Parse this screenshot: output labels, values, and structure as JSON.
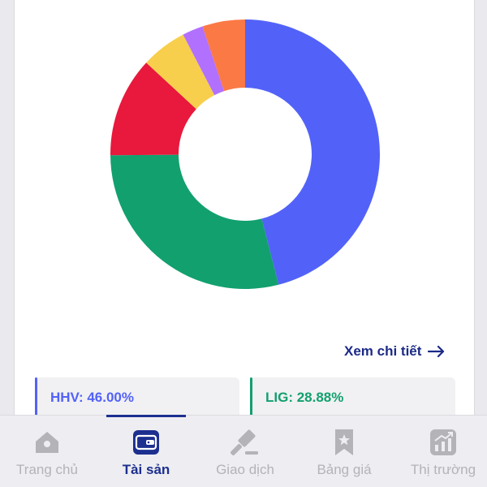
{
  "colors": {
    "HHV": "#5262f8",
    "LIG": "#12a06f",
    "red": "#e8193c",
    "yellow": "#f8cf4c",
    "purple": "#b270ff",
    "orange": "#fb7945",
    "nav_active": "#1d2f8f",
    "nav_inactive": "#b3b3b8",
    "link": "#1b2a87"
  },
  "chart_data": {
    "type": "pie",
    "hole": true,
    "slices": [
      {
        "label": "HHV",
        "value": 46.0,
        "color": "#5262f8"
      },
      {
        "label": "LIG",
        "value": 28.88,
        "color": "#12a06f"
      },
      {
        "label": "",
        "value": 12.0,
        "color": "#e8193c"
      },
      {
        "label": "",
        "value": 5.5,
        "color": "#f8cf4c"
      },
      {
        "label": "",
        "value": 2.5,
        "color": "#b270ff"
      },
      {
        "label": "",
        "value": 5.12,
        "color": "#fb7945"
      }
    ]
  },
  "detail_link": {
    "label": "Xem chi tiết",
    "icon": "arrow-right-icon"
  },
  "legend": [
    {
      "text": "HHV: 46.00%"
    },
    {
      "text": "LIG: 28.88%"
    }
  ],
  "nav": {
    "active_index": 1,
    "items": [
      {
        "label": "Trang chủ",
        "icon": "home-icon"
      },
      {
        "label": "Tài sản",
        "icon": "wallet-icon"
      },
      {
        "label": "Giao dịch",
        "icon": "gavel-icon"
      },
      {
        "label": "Bảng giá",
        "icon": "bookmark-star-icon"
      },
      {
        "label": "Thị trường",
        "icon": "chart-icon"
      }
    ]
  }
}
